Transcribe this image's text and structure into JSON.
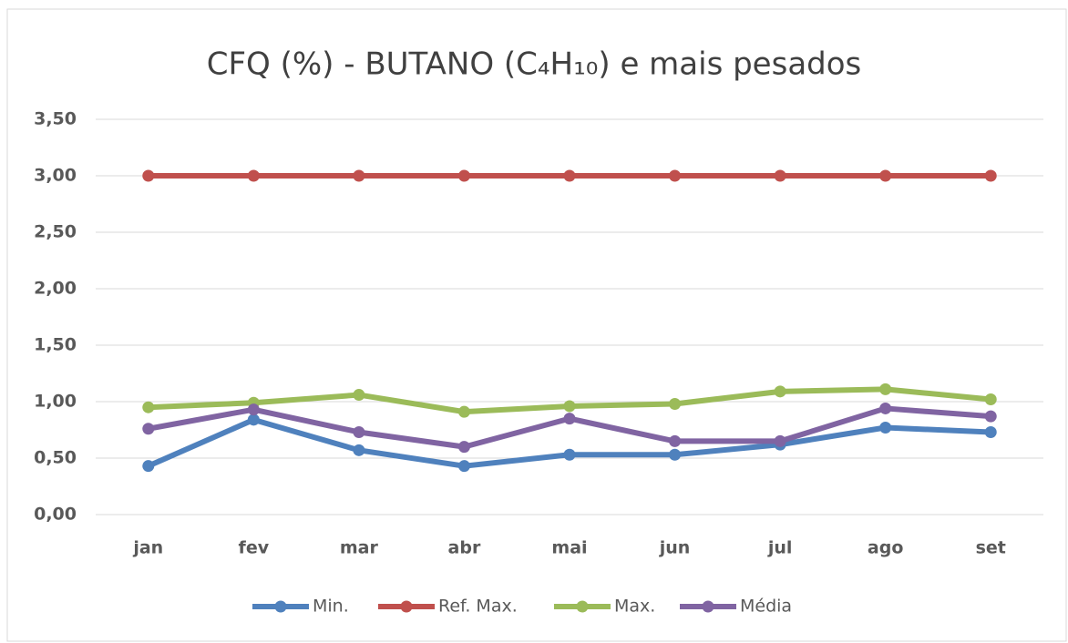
{
  "chart_data": {
    "type": "line",
    "title": "CFQ (%) - BUTANO (C₄H₁₀) e mais pesados",
    "categories": [
      "jan",
      "fev",
      "mar",
      "abr",
      "mai",
      "jun",
      "jul",
      "ago",
      "set"
    ],
    "series": [
      {
        "name": "Min.",
        "color": "#4f81bd",
        "values": [
          0.43,
          0.84,
          0.57,
          0.43,
          0.53,
          0.53,
          0.62,
          0.77,
          0.73
        ]
      },
      {
        "name": "Ref. Max.",
        "color": "#c0504d",
        "values": [
          3.0,
          3.0,
          3.0,
          3.0,
          3.0,
          3.0,
          3.0,
          3.0,
          3.0
        ]
      },
      {
        "name": "Max.",
        "color": "#9bbb59",
        "values": [
          0.95,
          0.99,
          1.06,
          0.91,
          0.96,
          0.98,
          1.09,
          1.11,
          1.02
        ]
      },
      {
        "name": "Média",
        "color": "#8064a2",
        "values": [
          0.76,
          0.93,
          0.73,
          0.6,
          0.85,
          0.65,
          0.65,
          0.94,
          0.87
        ]
      }
    ],
    "ylim": [
      0,
      3.5
    ],
    "yticks": [
      {
        "value": 0,
        "label": "0,00"
      },
      {
        "value": 0.5,
        "label": "0,50"
      },
      {
        "value": 1,
        "label": "1,00"
      },
      {
        "value": 1.5,
        "label": "1,50"
      },
      {
        "value": 2,
        "label": "2,00"
      },
      {
        "value": 2.5,
        "label": "2,50"
      },
      {
        "value": 3,
        "label": "3,00"
      },
      {
        "value": 3.5,
        "label": "3,50"
      }
    ],
    "grid": true,
    "legend": "bottom"
  }
}
